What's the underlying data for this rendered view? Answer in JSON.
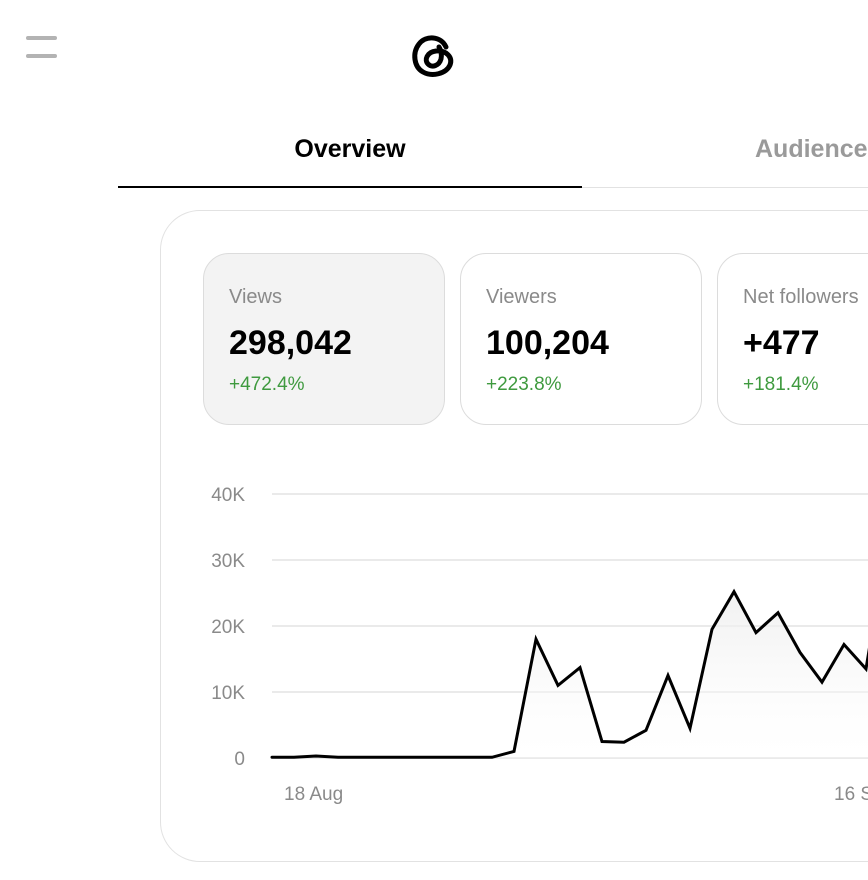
{
  "header": {
    "menu_icon": "hamburger-menu-icon",
    "logo_icon": "threads-logo-icon"
  },
  "tabs": [
    {
      "label": "Overview",
      "active": true
    },
    {
      "label": "Audience",
      "active": false
    }
  ],
  "stats": [
    {
      "label": "Views",
      "value": "298,042",
      "change": "+472.4%",
      "selected": true
    },
    {
      "label": "Viewers",
      "value": "100,204",
      "change": "+223.8%",
      "selected": false
    },
    {
      "label": "Net followers",
      "value": "+477",
      "change": "+181.4%",
      "selected": false
    }
  ],
  "colors": {
    "positive_change": "#3f9a3f",
    "muted_text": "#8a8a8a",
    "line": "#000000"
  },
  "chart_data": {
    "type": "area",
    "ylim": [
      0,
      40000
    ],
    "y_ticks": [
      0,
      10000,
      20000,
      30000,
      40000
    ],
    "y_tick_labels": [
      "0",
      "10K",
      "20K",
      "30K",
      "40K"
    ],
    "x_tick_labels": [
      {
        "index": 1,
        "label": "18 Aug"
      },
      {
        "index": 26,
        "label": "16 S"
      }
    ],
    "grid": true,
    "series": [
      {
        "values": [
          100,
          100,
          300,
          100,
          100,
          100,
          100,
          100,
          100,
          100,
          100,
          1000,
          18000,
          11000,
          13700,
          2500,
          2400,
          4200,
          12500,
          4500,
          19500,
          25200,
          19000,
          22000,
          16000,
          11500,
          17200,
          13500,
          33800,
          17000
        ]
      }
    ]
  }
}
